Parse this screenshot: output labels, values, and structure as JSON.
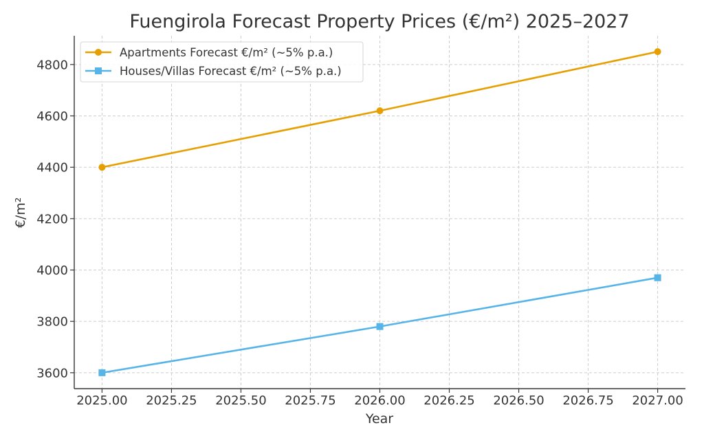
{
  "chart_data": {
    "type": "line",
    "title": "Fuengirola Forecast Property Prices (€/m²) 2025–2027",
    "xlabel": "Year",
    "ylabel": "€/m²",
    "x": [
      2025,
      2026,
      2027
    ],
    "xlim": [
      2024.9,
      2027.1
    ],
    "ylim": [
      3538,
      4912
    ],
    "xticks": [
      2025.0,
      2025.25,
      2025.5,
      2025.75,
      2026.0,
      2026.25,
      2026.5,
      2026.75,
      2027.0
    ],
    "xtick_labels": [
      "2025.00",
      "2025.25",
      "2025.50",
      "2025.75",
      "2026.00",
      "2026.25",
      "2026.50",
      "2026.75",
      "2027.00"
    ],
    "yticks": [
      3600,
      3800,
      4000,
      4200,
      4400,
      4600,
      4800
    ],
    "ytick_labels": [
      "3600",
      "3800",
      "4000",
      "4200",
      "4400",
      "4600",
      "4800"
    ],
    "grid": true,
    "legend_position": "top-left",
    "series": [
      {
        "name": "Apartments Forecast €/m² (~5% p.a.)",
        "values": [
          4400,
          4620,
          4850
        ],
        "color": "#E69F00",
        "marker": "circle"
      },
      {
        "name": "Houses/Villas Forecast €/m² (~5% p.a.)",
        "values": [
          3600,
          3780,
          3970
        ],
        "color": "#56B4E9",
        "marker": "square"
      }
    ]
  }
}
